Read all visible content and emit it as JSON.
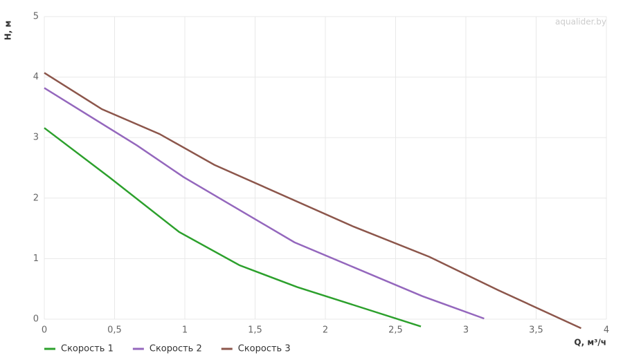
{
  "chart_data": {
    "type": "line",
    "watermark": "aqualider.by",
    "x_label": "Q, м³/ч",
    "y_label": "H, м",
    "xlim": [
      0,
      4
    ],
    "ylim": [
      0,
      5
    ],
    "xticks": [
      0,
      {
        "value": 0.5,
        "label": "0,5"
      },
      1,
      {
        "value": 1.5,
        "label": "1,5"
      },
      2,
      {
        "value": 2.5,
        "label": "2,5"
      },
      3,
      {
        "value": 3.5,
        "label": "3,5"
      },
      4
    ],
    "yticks": [
      0,
      1,
      2,
      3,
      4,
      5
    ],
    "grid": true,
    "legend": "bottom-left",
    "series": [
      {
        "name": "Скорость 1",
        "color": "#2ca02c",
        "x": [
          0,
          0.46,
          0.96,
          1.39,
          1.8,
          2.68
        ],
        "values": [
          3.16,
          2.35,
          1.44,
          0.89,
          0.53,
          -0.12
        ]
      },
      {
        "name": "Скорость 2",
        "color": "#9467bd",
        "x": [
          0,
          0.66,
          0.99,
          1.78,
          2.69,
          3.13
        ],
        "values": [
          3.82,
          2.87,
          2.35,
          1.27,
          0.38,
          0.01
        ]
      },
      {
        "name": "Скорость 3",
        "color": "#8c564b",
        "x": [
          0,
          0.41,
          0.82,
          1.21,
          2.2,
          2.74,
          3.23,
          3.82
        ],
        "values": [
          4.07,
          3.47,
          3.06,
          2.55,
          1.53,
          1.03,
          0.48,
          -0.15
        ]
      }
    ]
  }
}
